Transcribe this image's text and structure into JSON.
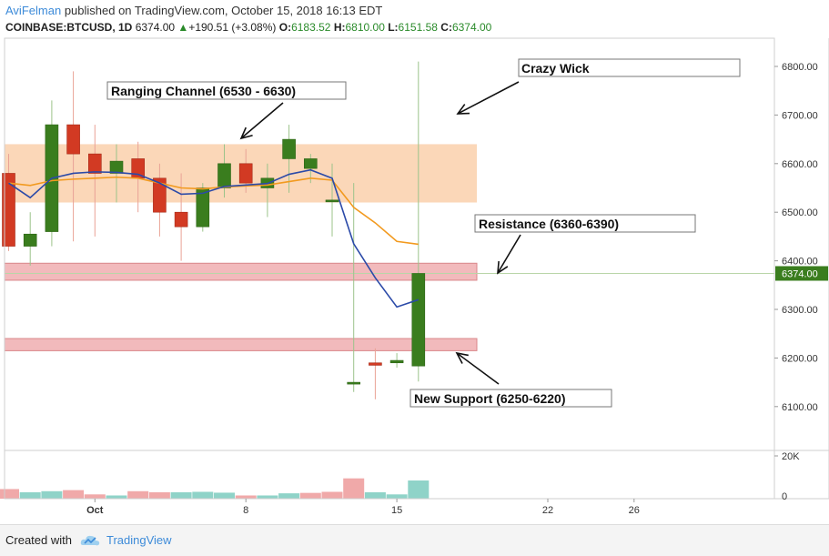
{
  "header": {
    "author": "AviFelman",
    "published_text": "published on TradingView.com, October 15, 2018 16:13 EDT",
    "symbol": "COINBASE:BTCUSD, 1D",
    "last": "6374.00",
    "change_arrow": "▲",
    "change": "+190.51 (+3.08%)",
    "o_label": "O:",
    "o_value": "6183.52",
    "h_label": "H:",
    "h_value": "6810.00",
    "l_label": "L:",
    "l_value": "6151.58",
    "c_label": "C:",
    "c_value": "6374.00"
  },
  "footer": {
    "created_with": "Created with",
    "brand": "TradingView"
  },
  "colors": {
    "up": "#3a7d1e",
    "down": "#d23a23",
    "vol_up": "#8fd3c8",
    "vol_down": "#f0a9a9",
    "ema_fast": "#2b4aa8",
    "ema_slow": "#f29a1f",
    "range_zone": "#f9c9a0",
    "sr_zone": "#eea3a6",
    "price_tag": "#3a7d1e"
  },
  "chart_data": {
    "type": "candlestick",
    "symbol": "COINBASE:BTCUSD",
    "timeframe": "1D",
    "x": [
      "2018-09-26",
      "2018-09-27",
      "2018-09-28",
      "2018-09-29",
      "2018-09-30",
      "2018-10-01",
      "2018-10-02",
      "2018-10-03",
      "2018-10-04",
      "2018-10-05",
      "2018-10-06",
      "2018-10-07",
      "2018-10-08",
      "2018-10-09",
      "2018-10-10",
      "2018-10-11",
      "2018-10-12",
      "2018-10-13",
      "2018-10-14",
      "2018-10-15"
    ],
    "open": [
      6580,
      6430,
      6460,
      6680,
      6620,
      6580,
      6610,
      6570,
      6500,
      6470,
      6550,
      6600,
      6550,
      6610,
      6590,
      6525,
      6150,
      6190,
      6190,
      6183.52
    ],
    "high": [
      6620,
      6500,
      6730,
      6790,
      6680,
      6640,
      6645,
      6600,
      6580,
      6560,
      6640,
      6630,
      6600,
      6680,
      6620,
      6600,
      6560,
      6220,
      6210,
      6810
    ],
    "low": [
      6420,
      6390,
      6430,
      6440,
      6450,
      6520,
      6500,
      6450,
      6400,
      6460,
      6530,
      6540,
      6490,
      6540,
      6560,
      6450,
      6130,
      6115,
      6180,
      6151.58
    ],
    "close": [
      6430,
      6455,
      6680,
      6620,
      6580,
      6605,
      6570,
      6500,
      6470,
      6550,
      6600,
      6560,
      6570,
      6650,
      6610,
      6525,
      6150,
      6185,
      6195,
      6374
    ],
    "volume_direction": [
      "down",
      "up",
      "up",
      "down",
      "down",
      "up",
      "down",
      "down",
      "up",
      "up",
      "up",
      "down",
      "up",
      "up",
      "down",
      "down",
      "down",
      "up",
      "up",
      "up"
    ],
    "volume_k": [
      4.5,
      3.0,
      3.5,
      4.0,
      2.0,
      1.5,
      3.5,
      3.0,
      3.0,
      3.2,
      2.8,
      1.5,
      1.5,
      2.5,
      2.7,
      3.2,
      9.5,
      3.0,
      2.0,
      8.5
    ],
    "ema_fast": [
      6560,
      6530,
      6570,
      6580,
      6583,
      6582,
      6578,
      6560,
      6537,
      6539,
      6553,
      6556,
      6559,
      6578,
      6587,
      6570,
      6435,
      6365,
      6305,
      6320
    ],
    "ema_slow": [
      6560,
      6555,
      6565,
      6568,
      6570,
      6572,
      6570,
      6560,
      6550,
      6548,
      6552,
      6554,
      6556,
      6563,
      6570,
      6566,
      6510,
      6478,
      6440,
      6434
    ],
    "zones": [
      {
        "name": "Ranging Channel",
        "low": 6520,
        "high": 6640,
        "kind": "range"
      },
      {
        "name": "Resistance",
        "low": 6360,
        "high": 6395,
        "kind": "sr"
      },
      {
        "name": "New Support",
        "low": 6215,
        "high": 6240,
        "kind": "sr"
      }
    ],
    "annotations": [
      {
        "text": "Crazy Wick"
      },
      {
        "text": "Ranging Channel (6530 - 6630)"
      },
      {
        "text": "Resistance (6360-6390)"
      },
      {
        "text": "New Support (6250-6220)"
      }
    ],
    "y_ticks": [
      "6800.00",
      "6700.00",
      "6600.00",
      "6500.00",
      "6400.00",
      "6300.00",
      "6200.00",
      "6100.00"
    ],
    "current_price_label": "6374.00",
    "volume_ticks": [
      "20K",
      "0"
    ],
    "x_tick_labels": [
      {
        "day_index": 5,
        "label": "Oct"
      },
      {
        "day_index": 12,
        "label": "8"
      },
      {
        "day_index": 19,
        "label": "15"
      },
      {
        "day_index": 26,
        "label": "22"
      },
      {
        "day_index": 30,
        "label": "26"
      }
    ],
    "ylim": [
      6040,
      6890
    ],
    "grid": false
  }
}
